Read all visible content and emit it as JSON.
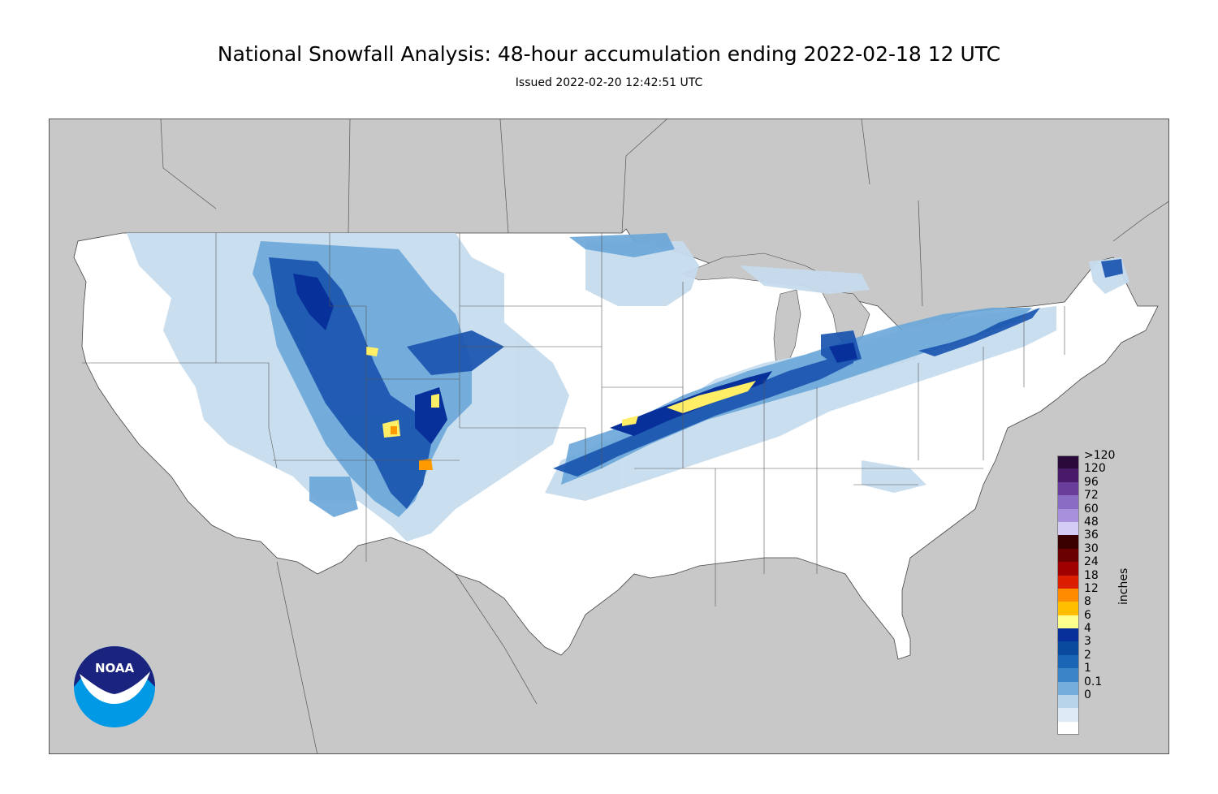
{
  "header": {
    "title": "National Snowfall Analysis: 48-hour accumulation ending 2022-02-18 12 UTC",
    "issued": "Issued 2022-02-20 12:42:51 UTC"
  },
  "legend": {
    "units": "inches",
    "levels": [
      {
        "label": ">120",
        "color": "#2a0a3a"
      },
      {
        "label": "120",
        "color": "#4a1a6a"
      },
      {
        "label": "96",
        "color": "#6a3d9a"
      },
      {
        "label": "72",
        "color": "#8a6cc4"
      },
      {
        "label": "60",
        "color": "#a890dc"
      },
      {
        "label": "48",
        "color": "#d4ccf4"
      },
      {
        "label": "36",
        "color": "#3a0000"
      },
      {
        "label": "30",
        "color": "#6a0000"
      },
      {
        "label": "24",
        "color": "#a00000"
      },
      {
        "label": "18",
        "color": "#dc1e00"
      },
      {
        "label": "12",
        "color": "#ff8c00"
      },
      {
        "label": "8",
        "color": "#ffbe00"
      },
      {
        "label": "6",
        "color": "#ffff8c"
      },
      {
        "label": "4",
        "color": "#08309a"
      },
      {
        "label": "3",
        "color": "#0a4a9e"
      },
      {
        "label": "2",
        "color": "#1a66b4"
      },
      {
        "label": "1",
        "color": "#3a84c8"
      },
      {
        "label": "0.1",
        "color": "#74aedc"
      },
      {
        "label": "0",
        "color": "#b8d4ea"
      },
      {
        "label": "",
        "color": "#ddeaf4"
      },
      {
        "label": "",
        "color": "#ffffff"
      }
    ]
  },
  "logo": {
    "text": "NOAA"
  },
  "colors": {
    "land_outside": "#c8c8c8",
    "us_land": "#ffffff",
    "light_snow": "#c6dcee",
    "medium_snow": "#6aa6d8",
    "heavy_snow": "#1a55b0",
    "very_heavy_snow": "#08309a",
    "yellow": "#ffee66",
    "orange": "#ff9a00"
  }
}
